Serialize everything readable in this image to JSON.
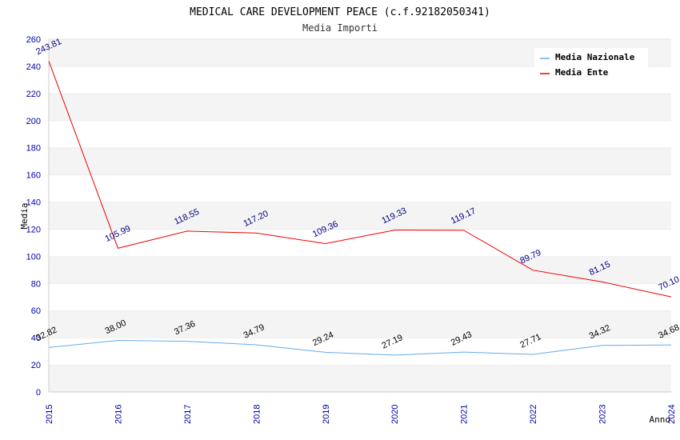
{
  "chart_data": {
    "type": "line",
    "title": "MEDICAL CARE DEVELOPMENT PEACE (c.f.92182050341)",
    "subtitle": "Media Importi",
    "xlabel": "Anno",
    "ylabel": "Media",
    "ylim": [
      0,
      260
    ],
    "yticks": [
      0,
      20,
      40,
      60,
      80,
      100,
      120,
      140,
      160,
      180,
      200,
      220,
      240,
      260
    ],
    "x": [
      "2015",
      "2016",
      "2017",
      "2018",
      "2019",
      "2020",
      "2021",
      "2022",
      "2023",
      "2024"
    ],
    "grid": "horizontal bands",
    "legend_position": "top-right",
    "series": [
      {
        "name": "Media Nazionale",
        "color": "#66aaee",
        "label_color": "#000000",
        "values": [
          32.82,
          38.0,
          37.36,
          34.79,
          29.24,
          27.19,
          29.43,
          27.71,
          34.32,
          34.68
        ],
        "labels": [
          "32.82",
          "38.00",
          "37.36",
          "34.79",
          "29.24",
          "27.19",
          "29.43",
          "27.71",
          "34.32",
          "34.68"
        ]
      },
      {
        "name": "Media Ente",
        "color": "#ee0000",
        "label_color": "#000080",
        "values": [
          243.81,
          105.99,
          118.55,
          117.2,
          109.36,
          119.33,
          119.17,
          89.79,
          81.15,
          70.1
        ],
        "labels": [
          "243.81",
          "105.99",
          "118.55",
          "117.20",
          "109.36",
          "119.33",
          "119.17",
          "89.79",
          "81.15",
          "70.10"
        ]
      }
    ]
  }
}
